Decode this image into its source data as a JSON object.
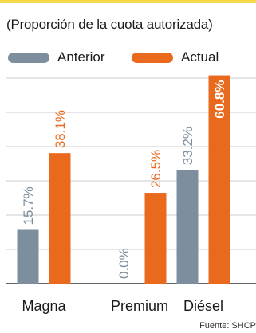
{
  "subtitle": "(Proporción de la cuota autorizada)",
  "source": "Fuente: SHCP",
  "colors": {
    "prev": "#7d8f9e",
    "curr": "#ea6a1d",
    "grid": "#cccccc",
    "axis": "#333333",
    "accent_rule": "#f5d94a"
  },
  "chart_data": {
    "type": "bar",
    "title": "",
    "subtitle": "(Proporción de la cuota autorizada)",
    "xlabel": "",
    "ylabel": "",
    "categories": [
      "Magna",
      "Premium",
      "Diésel"
    ],
    "series": [
      {
        "name": "Anterior",
        "values": [
          15.7,
          0.0,
          33.2
        ],
        "labels": [
          "15.7%",
          "0.0%",
          "33.2%"
        ]
      },
      {
        "name": "Actual",
        "values": [
          38.1,
          26.5,
          60.8
        ],
        "labels": [
          "38.1%",
          "26.5%",
          "60.8%"
        ]
      }
    ],
    "ylim": [
      0,
      60
    ],
    "grid": true,
    "legend": "top",
    "value_labels": "rotated vertical"
  }
}
